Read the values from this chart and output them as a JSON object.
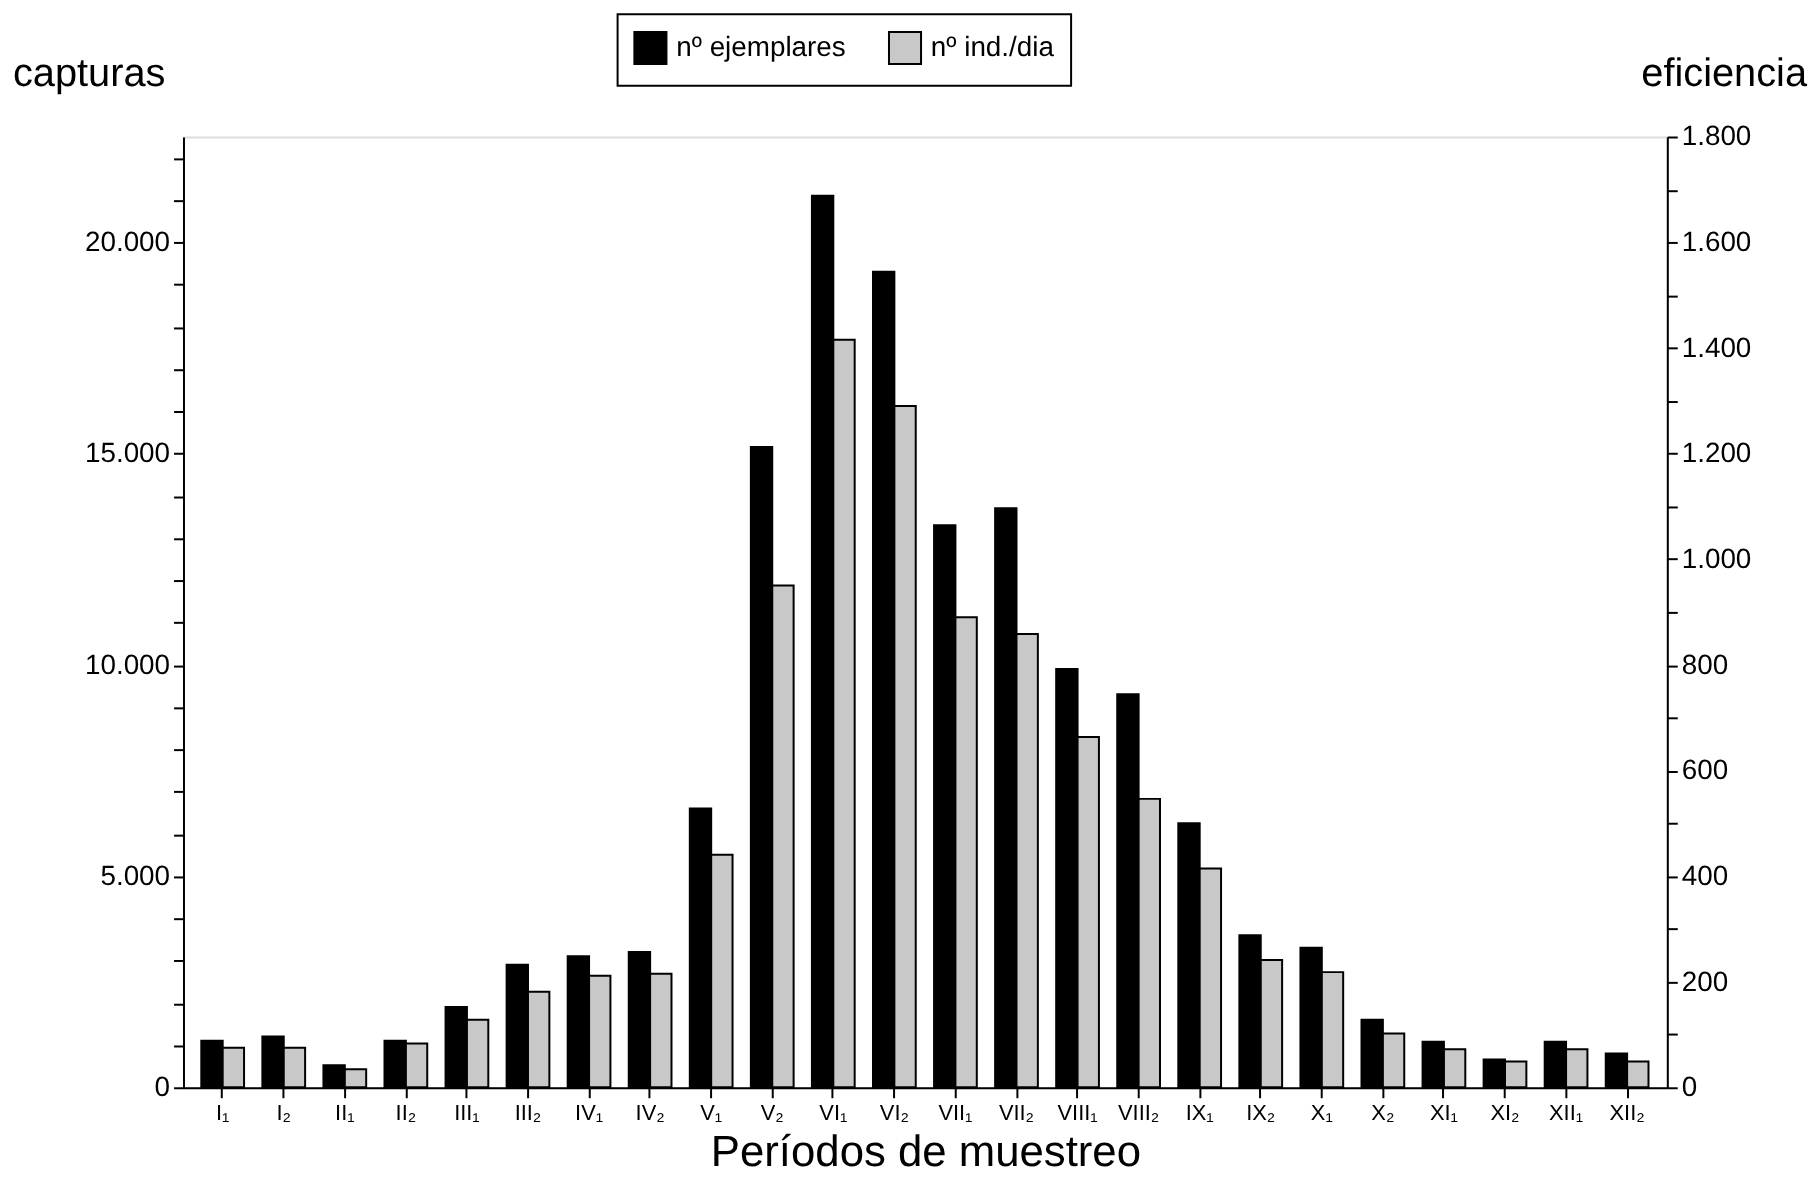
{
  "chart_data": {
    "type": "bar",
    "xlabel": "Períodos de muestreo",
    "ylabel": "capturas",
    "y2label": "eficiencia",
    "categories": [
      "I₁",
      "I₂",
      "II₁",
      "II₂",
      "III₁",
      "III₂",
      "IV₁",
      "IV₂",
      "V₁",
      "V₂",
      "VI₁",
      "VI₂",
      "VII₁",
      "VII₂",
      "VIII₁",
      "VIII₂",
      "IX₁",
      "IX₂",
      "X₁",
      "X₂",
      "XI₁",
      "XI₂",
      "XII₁",
      "XII₂"
    ],
    "series": [
      {
        "name": "nº ejemplares",
        "color": "#000000",
        "values": [
          1100,
          1200,
          520,
          1100,
          1900,
          2900,
          3100,
          3200,
          6600,
          15150,
          21100,
          19300,
          13300,
          13700,
          9900,
          9300,
          6250,
          3600,
          3300,
          1600,
          1080,
          660,
          1080,
          800
        ]
      },
      {
        "name": "nº ind./dia",
        "color": "#c8c8c8",
        "axis": "y2",
        "values": [
          75,
          75,
          34,
          83,
          128,
          181,
          211,
          215,
          440,
          950,
          1415,
          1290,
          890,
          858,
          663,
          546,
          414,
          241,
          218,
          102,
          72,
          49,
          72,
          49
        ]
      }
    ],
    "ylim": [
      0,
      22500
    ],
    "yticks": [
      0,
      {
        "value": 1000,
        "label": null
      },
      {
        "value": 2000,
        "label": null
      },
      {
        "value": 3000,
        "label": null
      },
      {
        "value": 4000,
        "label": null
      },
      {
        "value": 5000,
        "label": "5.000"
      },
      {
        "value": 6000,
        "label": null
      },
      {
        "value": 7000,
        "label": null
      },
      {
        "value": 8000,
        "label": null
      },
      {
        "value": 9000,
        "label": null
      },
      {
        "value": 10000,
        "label": "10.000"
      },
      {
        "value": 11000,
        "label": null
      },
      {
        "value": 12000,
        "label": null
      },
      {
        "value": 13000,
        "label": null
      },
      {
        "value": 14000,
        "label": null
      },
      {
        "value": 15000,
        "label": "15.000"
      },
      {
        "value": 16000,
        "label": null
      },
      {
        "value": 17000,
        "label": null
      },
      {
        "value": 18000,
        "label": null
      },
      {
        "value": 19000,
        "label": null
      },
      {
        "value": 20000,
        "label": "20.000"
      },
      {
        "value": 21000,
        "label": null
      },
      {
        "value": 22000,
        "label": null
      }
    ],
    "y2lim": [
      0,
      1800
    ],
    "y2ticks": [
      0,
      {
        "value": 100,
        "label": null
      },
      200,
      {
        "value": 300,
        "label": null
      },
      400,
      {
        "value": 500,
        "label": null
      },
      600,
      {
        "value": 700,
        "label": null
      },
      800,
      {
        "value": 900,
        "label": null
      },
      {
        "value": 1000,
        "label": "1.000"
      },
      {
        "value": 1100,
        "label": null
      },
      {
        "value": 1200,
        "label": "1.200"
      },
      {
        "value": 1300,
        "label": null
      },
      {
        "value": 1400,
        "label": "1.400"
      },
      {
        "value": 1500,
        "label": null
      },
      {
        "value": 1600,
        "label": "1.600"
      },
      {
        "value": 1700,
        "label": null
      },
      {
        "value": 1800,
        "label": "1.800"
      }
    ],
    "legend": "top",
    "grid": false
  }
}
